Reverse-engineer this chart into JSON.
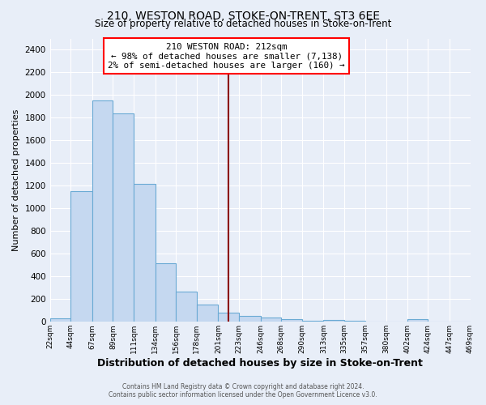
{
  "title": "210, WESTON ROAD, STOKE-ON-TRENT, ST3 6EE",
  "subtitle": "Size of property relative to detached houses in Stoke-on-Trent",
  "xlabel": "Distribution of detached houses by size in Stoke-on-Trent",
  "ylabel": "Number of detached properties",
  "bin_labels": [
    "22sqm",
    "44sqm",
    "67sqm",
    "89sqm",
    "111sqm",
    "134sqm",
    "156sqm",
    "178sqm",
    "201sqm",
    "223sqm",
    "246sqm",
    "268sqm",
    "290sqm",
    "313sqm",
    "335sqm",
    "357sqm",
    "380sqm",
    "402sqm",
    "424sqm",
    "447sqm",
    "469sqm"
  ],
  "bin_edges": [
    22,
    44,
    67,
    89,
    111,
    134,
    156,
    178,
    201,
    223,
    246,
    268,
    290,
    313,
    335,
    357,
    380,
    402,
    424,
    447,
    469
  ],
  "bar_heights": [
    30,
    1150,
    1950,
    1840,
    1220,
    520,
    265,
    150,
    80,
    50,
    38,
    20,
    10,
    15,
    8,
    5,
    0,
    20,
    5,
    0
  ],
  "bar_color": "#c5d8f0",
  "bar_edge_color": "#6aaad4",
  "bar_edge_width": 0.8,
  "vline_x": 212,
  "vline_color": "#8b0000",
  "vline_lw": 1.5,
  "annotation_title": "210 WESTON ROAD: 212sqm",
  "annotation_line1": "← 98% of detached houses are smaller (7,138)",
  "annotation_line2": "2% of semi-detached houses are larger (160) →",
  "ylim": [
    0,
    2500
  ],
  "yticks": [
    0,
    200,
    400,
    600,
    800,
    1000,
    1200,
    1400,
    1600,
    1800,
    2000,
    2200,
    2400
  ],
  "bg_color": "#e8eef8",
  "grid_color": "#ffffff",
  "footer_line1": "Contains HM Land Registry data © Crown copyright and database right 2024.",
  "footer_line2": "Contains public sector information licensed under the Open Government Licence v3.0."
}
